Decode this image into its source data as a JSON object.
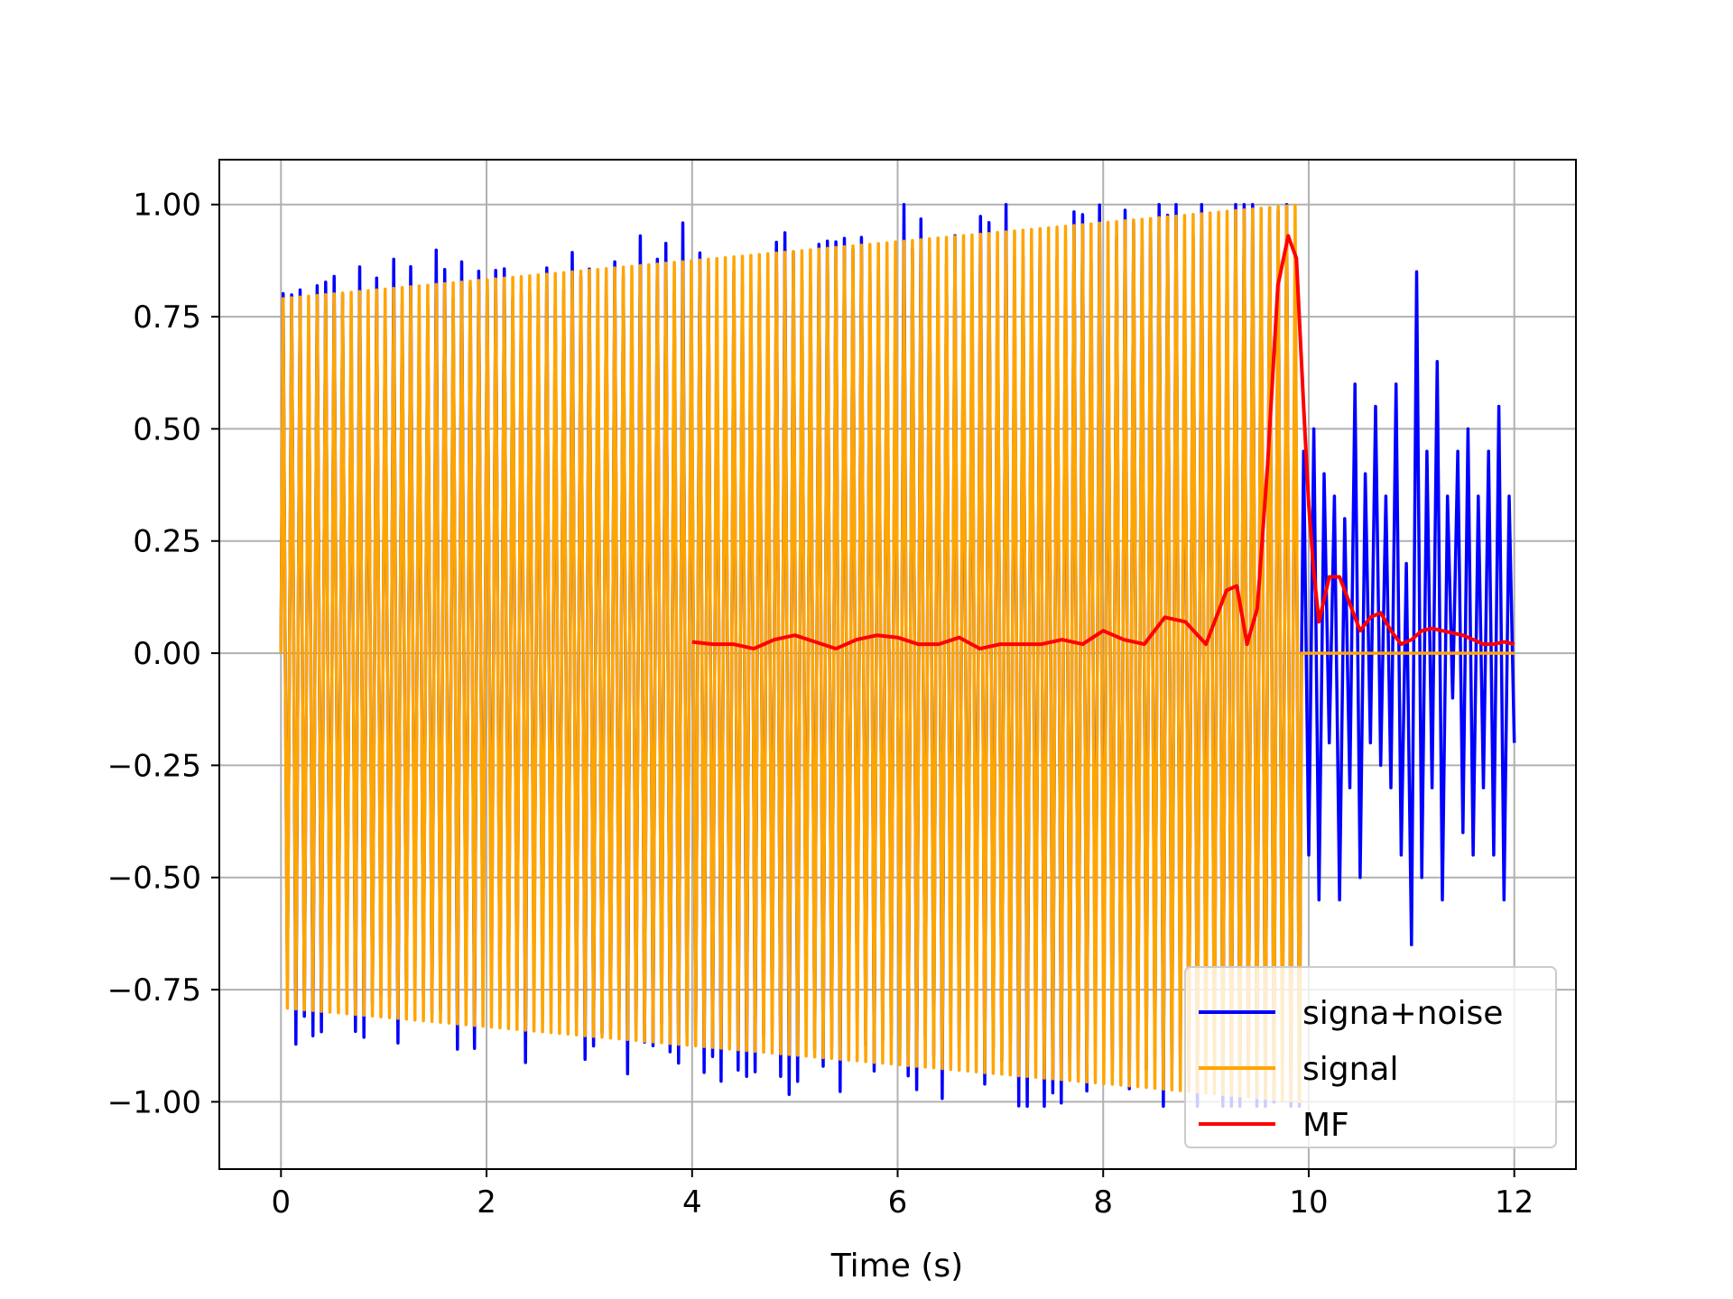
{
  "chart_data": {
    "type": "line",
    "title": "",
    "xlabel": "Time (s)",
    "ylabel": "",
    "xlim": [
      -0.6,
      12.6
    ],
    "ylim": [
      -1.15,
      1.1
    ],
    "grid": true,
    "legend_position": "lower-right",
    "x_ticks": [
      0,
      2,
      4,
      6,
      8,
      10,
      12
    ],
    "x_tick_labels": [
      "0",
      "2",
      "4",
      "6",
      "8",
      "10",
      "12"
    ],
    "y_ticks": [
      1.0,
      0.75,
      0.5,
      0.25,
      0.0,
      -0.25,
      -0.5,
      -0.75,
      -1.0
    ],
    "y_tick_labels": [
      "1.00",
      "0.75",
      "0.50",
      "0.25",
      "0.00",
      "−0.25",
      "−0.50",
      "−0.75",
      "−1.00"
    ],
    "series": [
      {
        "name": "signa+noise",
        "color": "#0000ff",
        "description_range": {
          "x_start": 0,
          "x_end": 12,
          "min": -1.01,
          "max": 1.0
        },
        "noise_segment": {
          "x": [
            9.95,
            10.0,
            10.05,
            10.1,
            10.15,
            10.2,
            10.25,
            10.3,
            10.35,
            10.4,
            10.45,
            10.5,
            10.55,
            10.6,
            10.65,
            10.7,
            10.75,
            10.8,
            10.85,
            10.9,
            10.95,
            11.0,
            11.05,
            11.1,
            11.15,
            11.2,
            11.25,
            11.3,
            11.35,
            11.4,
            11.45,
            11.5,
            11.55,
            11.6,
            11.65,
            11.7,
            11.75,
            11.8,
            11.85,
            11.9,
            11.95,
            12.0
          ],
          "y": [
            0.45,
            -0.45,
            0.5,
            -0.55,
            0.4,
            -0.2,
            0.35,
            -0.55,
            0.3,
            -0.3,
            0.6,
            -0.5,
            0.4,
            -0.2,
            0.55,
            -0.25,
            0.35,
            -0.3,
            0.6,
            -0.45,
            0.2,
            -0.65,
            0.85,
            -0.5,
            0.45,
            -0.3,
            0.65,
            -0.55,
            0.35,
            -0.1,
            0.45,
            -0.4,
            0.5,
            -0.45,
            0.35,
            -0.3,
            0.45,
            -0.45,
            0.55,
            -0.55,
            0.35,
            -0.2
          ]
        }
      },
      {
        "name": "signal",
        "color": "#ffa500",
        "envelope_start": 0.79,
        "envelope_end": 1.0,
        "x_start": 0,
        "x_end": 9.93,
        "zero_segment": [
          9.93,
          12.0
        ]
      },
      {
        "name": "MF",
        "color": "#ff0000",
        "x": [
          4.0,
          4.2,
          4.4,
          4.6,
          4.8,
          5.0,
          5.2,
          5.4,
          5.6,
          5.8,
          6.0,
          6.2,
          6.4,
          6.6,
          6.8,
          7.0,
          7.2,
          7.4,
          7.6,
          7.8,
          8.0,
          8.2,
          8.4,
          8.6,
          8.8,
          9.0,
          9.1,
          9.2,
          9.3,
          9.4,
          9.5,
          9.6,
          9.7,
          9.8,
          9.88,
          9.95,
          10.0,
          10.05,
          10.1,
          10.2,
          10.3,
          10.4,
          10.5,
          10.6,
          10.7,
          10.8,
          10.9,
          11.0,
          11.1,
          11.2,
          11.3,
          11.4,
          11.5,
          11.6,
          11.7,
          11.8,
          11.9,
          12.0
        ],
        "y": [
          0.025,
          0.02,
          0.02,
          0.01,
          0.03,
          0.04,
          0.025,
          0.01,
          0.03,
          0.04,
          0.035,
          0.02,
          0.02,
          0.035,
          0.01,
          0.02,
          0.02,
          0.02,
          0.03,
          0.02,
          0.05,
          0.03,
          0.02,
          0.08,
          0.07,
          0.02,
          0.08,
          0.14,
          0.15,
          0.02,
          0.1,
          0.42,
          0.82,
          0.93,
          0.88,
          0.55,
          0.33,
          0.18,
          0.07,
          0.17,
          0.17,
          0.11,
          0.05,
          0.08,
          0.09,
          0.05,
          0.02,
          0.03,
          0.05,
          0.055,
          0.05,
          0.045,
          0.04,
          0.03,
          0.02,
          0.02,
          0.025,
          0.02
        ]
      }
    ]
  }
}
